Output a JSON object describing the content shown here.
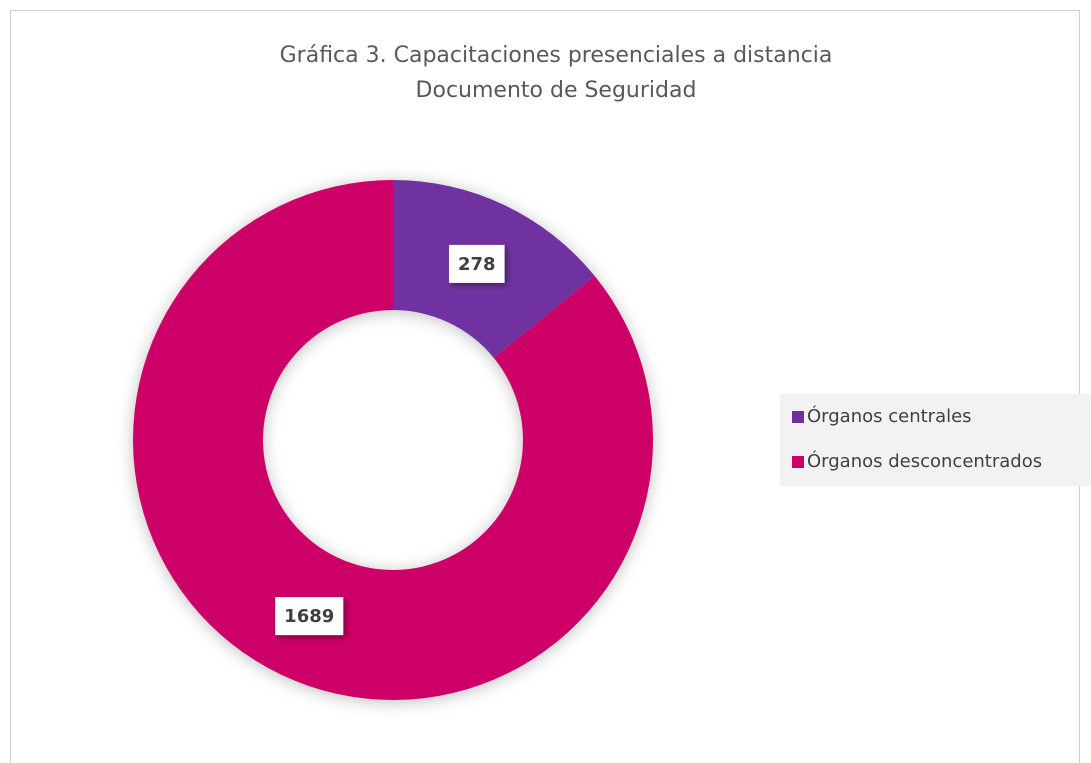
{
  "chart_data": {
    "type": "donut",
    "title": "Gráfica 3. Capacitaciones presenciales a distancia",
    "subtitle": "Documento de Seguridad",
    "categories": [
      "Órganos centrales",
      "Órganos desconcentrados"
    ],
    "values": [
      278,
      1689
    ],
    "colors": [
      "#7030a0",
      "#cc0066"
    ],
    "legend": "right"
  }
}
